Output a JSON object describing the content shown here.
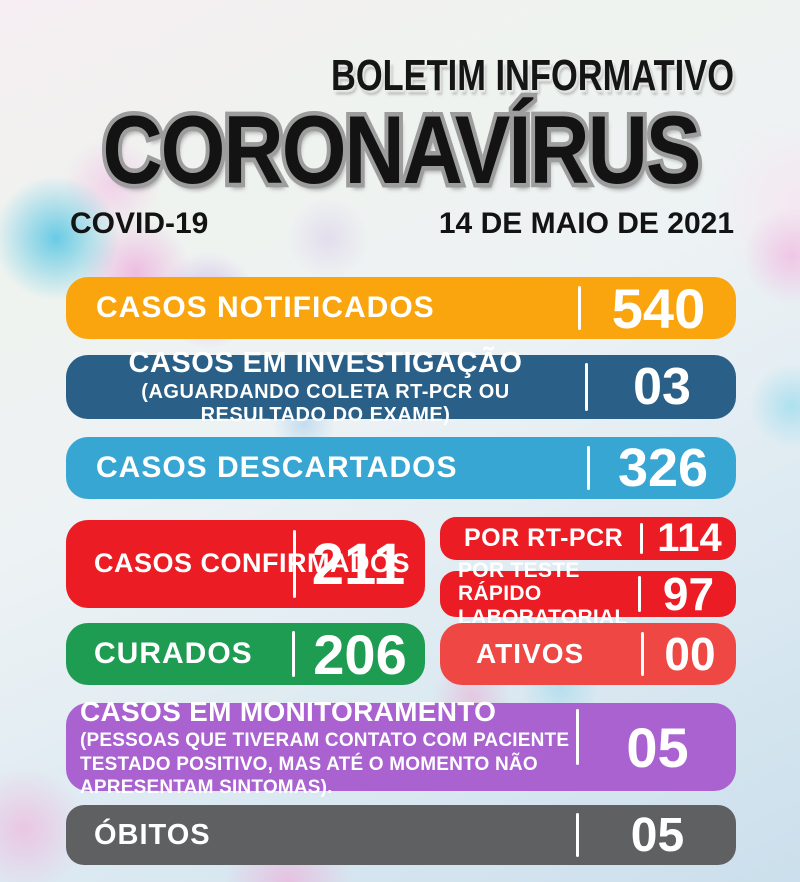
{
  "header": {
    "kicker": "BOLETIM INFORMATIVO",
    "title": "CORONAVÍRUS",
    "covid_label": "COVID-19",
    "date": "14 DE MAIO DE 2021"
  },
  "colors": {
    "orange": "#FAA50D",
    "dark_blue": "#2A5F87",
    "light_blue": "#38A6D2",
    "red": "#EB1C23",
    "red_light": "#EE4744",
    "green": "#1E9C52",
    "purple": "#A962D0",
    "gray": "#5E6062",
    "bar_text": "#FFFFFF",
    "header_text": "#131313"
  },
  "cards": {
    "notificados": {
      "label": "CASOS NOTIFICADOS",
      "value": "540"
    },
    "investigacao": {
      "title": "CASOS EM INVESTIGAÇÃO",
      "note": "(AGUARDANDO COLETA RT-PCR OU RESULTADO DO EXAME)",
      "value": "03"
    },
    "descartados": {
      "label": "CASOS DESCARTADOS",
      "value": "326"
    },
    "confirmados": {
      "label": "CASOS CONFIRMADOS",
      "value": "211"
    },
    "por_rt_pcr": {
      "label": "POR RT-PCR",
      "value": "114"
    },
    "por_teste": {
      "label": "POR TESTE RÁPIDO LABORATORIAL",
      "value": "97"
    },
    "curados": {
      "label": "CURADOS",
      "value": "206"
    },
    "ativos": {
      "label": "ATIVOS",
      "value": "00"
    },
    "monitoramento": {
      "title": "CASOS EM MONITORAMENTO",
      "note": "(PESSOAS QUE TIVERAM CONTATO COM PACIENTE TESTADO POSITIVO, MAS ATÉ O MOMENTO NÃO APRESENTAM SINTOMAS).",
      "value": "05"
    },
    "obitos": {
      "label": "ÓBITOS",
      "value": "05"
    }
  }
}
